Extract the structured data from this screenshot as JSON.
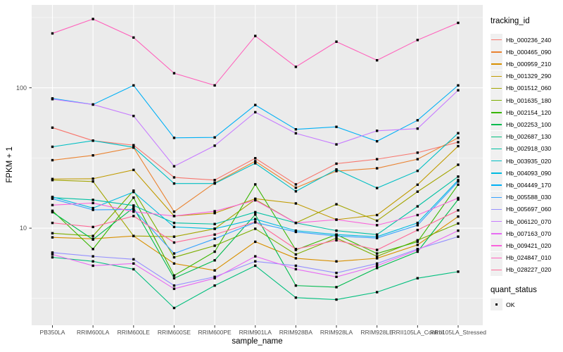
{
  "figure": {
    "y_axis": {
      "title": "FPKM + 1",
      "tick_labels": [
        "100",
        "10"
      ]
    },
    "x_axis": {
      "title": "sample_name"
    },
    "legend": {
      "tracking_title": "tracking_id",
      "quant_title": "quant_status",
      "quant_ok_label": "OK"
    },
    "colors": {
      "panel_bg": "#EBEBEB",
      "gridline": "#FFFFFF",
      "tick_text": "#4D4D4D",
      "axis_title_text": "#000000",
      "point_marker": "#000000",
      "legend_key_bg": "#F0F0F0"
    }
  },
  "chart_data": {
    "type": "line",
    "title": "",
    "xlabel": "sample_name",
    "ylabel": "FPKM + 1",
    "y_scale": "log10",
    "ylim": [
      2,
      390
    ],
    "y_major_ticks": [
      100,
      10
    ],
    "y_minor_gridlines": [
      316.23,
      31.62,
      3.162
    ],
    "grid": true,
    "legend_position": "right",
    "point_marker": "small black square (quant_status = OK)",
    "categories": [
      "PB350LA",
      "RRIM600LA",
      "RRIM600LE",
      "RRIM600SE",
      "RRIM600PE",
      "RRIM901LA",
      "RRIM928BA",
      "RRIM928LA",
      "RRIM928LE",
      "RRII105LA_Control",
      "RRII105LA_Stressed"
    ],
    "series": [
      {
        "name": "Hb_000236_240",
        "color": "#F8766D",
        "values": [
          52,
          42,
          39,
          23,
          22,
          31.5,
          20.5,
          28.8,
          31,
          34.5,
          41
        ]
      },
      {
        "name": "Hb_000465_090",
        "color": "#EA8331",
        "values": [
          30.5,
          33,
          37.5,
          13.1,
          21,
          30,
          19.4,
          25.5,
          26.7,
          31,
          44
        ]
      },
      {
        "name": "Hb_000959_210",
        "color": "#D89000",
        "values": [
          8.6,
          8.4,
          8.8,
          5.6,
          5.0,
          8.0,
          6.1,
          5.8,
          6.1,
          7.6,
          12.1
        ]
      },
      {
        "name": "Hb_001329_290",
        "color": "#C09B00",
        "values": [
          22.4,
          22.5,
          26,
          12.2,
          12.8,
          16.2,
          15,
          11.5,
          12.4,
          20.4,
          38.4
        ]
      },
      {
        "name": "Hb_001512_060",
        "color": "#A3A500",
        "values": [
          22,
          21.5,
          8.8,
          8.7,
          9.9,
          16,
          10.9,
          14.8,
          11.3,
          18.2,
          28.3
        ]
      },
      {
        "name": "Hb_001635_180",
        "color": "#7CAE00",
        "values": [
          9.2,
          8.8,
          18.5,
          6.2,
          7.5,
          9.9,
          6.5,
          8.5,
          6.3,
          8.2,
          10.8
        ]
      },
      {
        "name": "Hb_002154_120",
        "color": "#39B600",
        "values": [
          13.3,
          7.1,
          16.5,
          4.6,
          6.8,
          20.5,
          7.0,
          9.0,
          6.6,
          8.0,
          20.4
        ]
      },
      {
        "name": "Hb_002253_100",
        "color": "#00BB4E",
        "values": [
          13.0,
          8.3,
          14,
          4.4,
          5.9,
          12.5,
          3.9,
          3.8,
          5.2,
          6.8,
          16.0
        ]
      },
      {
        "name": "Hb_002687_130",
        "color": "#00BF7D",
        "values": [
          6.2,
          5.8,
          5.1,
          2.7,
          3.9,
          5.4,
          3.2,
          3.1,
          3.5,
          4.4,
          4.9
        ]
      },
      {
        "name": "Hb_002918_030",
        "color": "#00C1A3",
        "values": [
          16.5,
          15.9,
          14.5,
          10.9,
          10.7,
          13.0,
          10.9,
          9.6,
          9.0,
          14.3,
          23.3
        ]
      },
      {
        "name": "Hb_003935_020",
        "color": "#00BFC4",
        "values": [
          38,
          42,
          37.7,
          20.8,
          20.8,
          29,
          18.3,
          26.2,
          19.3,
          25.6,
          47.5
        ]
      },
      {
        "name": "Hb_004093_090",
        "color": "#00BAE0",
        "values": [
          16.7,
          13.9,
          18.1,
          10.2,
          9.9,
          11.6,
          9.6,
          9.0,
          8.7,
          10.9,
          22
        ]
      },
      {
        "name": "Hb_004449_170",
        "color": "#00B0F6",
        "values": [
          84,
          76,
          104,
          44,
          44.3,
          75.4,
          50.6,
          52.7,
          41.6,
          58.7,
          104
        ]
      },
      {
        "name": "Hb_005588_030",
        "color": "#35A2FF",
        "values": [
          16.2,
          13.5,
          13.6,
          6.6,
          8.4,
          11.0,
          9.4,
          8.8,
          8.5,
          10.5,
          21.5
        ]
      },
      {
        "name": "Hb_005697_060",
        "color": "#9590FF",
        "values": [
          6.7,
          6.3,
          6.0,
          3.9,
          4.5,
          5.8,
          5.4,
          4.8,
          5.6,
          7.1,
          8.7
        ]
      },
      {
        "name": "Hb_006120_070",
        "color": "#C77CFF",
        "values": [
          83,
          76,
          63,
          27.6,
          38.7,
          67,
          47.4,
          39.5,
          49.4,
          51.2,
          96
        ]
      },
      {
        "name": "Hb_007163_070",
        "color": "#E76BF3",
        "values": [
          6.5,
          5.4,
          5.6,
          3.7,
          4.4,
          6.3,
          5.1,
          4.5,
          5.4,
          7.0,
          9.6
        ]
      },
      {
        "name": "Hb_009421_020",
        "color": "#FA62DB",
        "values": [
          14.6,
          15.1,
          13.1,
          12.2,
          13.2,
          15.8,
          10.9,
          11.5,
          10.5,
          12.4,
          16.4
        ]
      },
      {
        "name": "Hb_024847_010",
        "color": "#FF62BC",
        "values": [
          244,
          309,
          228,
          127,
          104,
          234,
          141,
          213,
          157,
          219,
          290
        ]
      },
      {
        "name": "Hb_028227_020",
        "color": "#FF6A98",
        "values": [
          10.9,
          10.2,
          12.2,
          7.9,
          9.0,
          11.1,
          7.1,
          8.2,
          7.0,
          9.7,
          13.4
        ]
      }
    ]
  }
}
